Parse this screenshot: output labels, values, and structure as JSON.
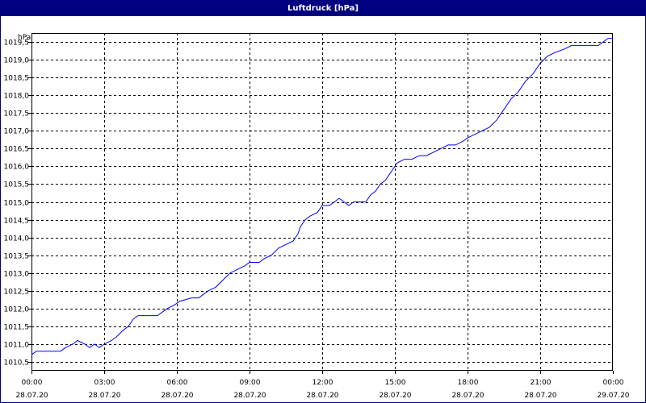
{
  "chart_data": {
    "type": "line",
    "title": "Luftdruck [hPa]",
    "ylabel": "hPa",
    "xlabel": "",
    "ylim": [
      1010.25,
      1019.75
    ],
    "xlim": [
      0,
      24
    ],
    "grid": true,
    "colors": {
      "line": "#0000ff",
      "title_bar": "#000080",
      "grid": "#000000"
    },
    "y_ticks": [
      {
        "value": 1010.5,
        "label": "1010,5"
      },
      {
        "value": 1011.0,
        "label": "1011,0"
      },
      {
        "value": 1011.5,
        "label": "1011,5"
      },
      {
        "value": 1012.0,
        "label": "1012,0"
      },
      {
        "value": 1012.5,
        "label": "1012,5"
      },
      {
        "value": 1013.0,
        "label": "1013,0"
      },
      {
        "value": 1013.5,
        "label": "1013,5"
      },
      {
        "value": 1014.0,
        "label": "1014,0"
      },
      {
        "value": 1014.5,
        "label": "1014,5"
      },
      {
        "value": 1015.0,
        "label": "1015,0"
      },
      {
        "value": 1015.5,
        "label": "1015,5"
      },
      {
        "value": 1016.0,
        "label": "1016,0"
      },
      {
        "value": 1016.5,
        "label": "1016,5"
      },
      {
        "value": 1017.0,
        "label": "1017,0"
      },
      {
        "value": 1017.5,
        "label": "1017,5"
      },
      {
        "value": 1018.0,
        "label": "1018,0"
      },
      {
        "value": 1018.5,
        "label": "1018,5"
      },
      {
        "value": 1019.0,
        "label": "1019,0"
      },
      {
        "value": 1019.5,
        "label": "1019,5"
      }
    ],
    "x_ticks": [
      {
        "hour": 0,
        "time": "00:00",
        "date": "28.07.20"
      },
      {
        "hour": 3,
        "time": "03:00",
        "date": "28.07.20"
      },
      {
        "hour": 6,
        "time": "06:00",
        "date": "28.07.20"
      },
      {
        "hour": 9,
        "time": "09:00",
        "date": "28.07.20"
      },
      {
        "hour": 12,
        "time": "12:00",
        "date": "28.07.20"
      },
      {
        "hour": 15,
        "time": "15:00",
        "date": "28.07.20"
      },
      {
        "hour": 18,
        "time": "18:00",
        "date": "28.07.20"
      },
      {
        "hour": 21,
        "time": "21:00",
        "date": "28.07.20"
      },
      {
        "hour": 24,
        "time": "00:00",
        "date": "29.07.20"
      }
    ],
    "series": [
      {
        "values": [
          [
            0.0,
            1010.7
          ],
          [
            0.2,
            1010.8
          ],
          [
            1.2,
            1010.8
          ],
          [
            1.4,
            1010.9
          ],
          [
            1.7,
            1011.0
          ],
          [
            1.9,
            1011.1
          ],
          [
            2.2,
            1011.0
          ],
          [
            2.4,
            1010.9
          ],
          [
            2.6,
            1011.0
          ],
          [
            2.8,
            1010.9
          ],
          [
            3.0,
            1011.0
          ],
          [
            3.3,
            1011.1
          ],
          [
            3.5,
            1011.2
          ],
          [
            3.8,
            1011.4
          ],
          [
            4.0,
            1011.5
          ],
          [
            4.2,
            1011.7
          ],
          [
            4.4,
            1011.8
          ],
          [
            5.0,
            1011.8
          ],
          [
            5.2,
            1011.8
          ],
          [
            5.4,
            1011.9
          ],
          [
            5.6,
            1012.0
          ],
          [
            5.9,
            1012.1
          ],
          [
            6.1,
            1012.2
          ],
          [
            6.6,
            1012.3
          ],
          [
            6.9,
            1012.3
          ],
          [
            7.1,
            1012.4
          ],
          [
            7.3,
            1012.5
          ],
          [
            7.6,
            1012.6
          ],
          [
            7.9,
            1012.8
          ],
          [
            8.2,
            1013.0
          ],
          [
            8.5,
            1013.1
          ],
          [
            8.8,
            1013.2
          ],
          [
            9.0,
            1013.3
          ],
          [
            9.4,
            1013.3
          ],
          [
            9.6,
            1013.4
          ],
          [
            9.9,
            1013.5
          ],
          [
            10.2,
            1013.7
          ],
          [
            10.5,
            1013.8
          ],
          [
            10.8,
            1013.9
          ],
          [
            11.0,
            1014.1
          ],
          [
            11.1,
            1014.3
          ],
          [
            11.3,
            1014.5
          ],
          [
            11.5,
            1014.6
          ],
          [
            11.8,
            1014.7
          ],
          [
            12.0,
            1014.9
          ],
          [
            12.3,
            1014.9
          ],
          [
            12.5,
            1015.0
          ],
          [
            12.7,
            1015.1
          ],
          [
            12.9,
            1015.0
          ],
          [
            13.1,
            1014.9
          ],
          [
            13.3,
            1015.0
          ],
          [
            13.5,
            1015.0
          ],
          [
            13.8,
            1015.0
          ],
          [
            14.0,
            1015.2
          ],
          [
            14.2,
            1015.3
          ],
          [
            14.4,
            1015.5
          ],
          [
            14.6,
            1015.6
          ],
          [
            14.8,
            1015.8
          ],
          [
            15.0,
            1016.0
          ],
          [
            15.1,
            1016.1
          ],
          [
            15.4,
            1016.2
          ],
          [
            15.7,
            1016.2
          ],
          [
            16.0,
            1016.3
          ],
          [
            16.3,
            1016.3
          ],
          [
            16.6,
            1016.4
          ],
          [
            16.9,
            1016.5
          ],
          [
            17.2,
            1016.6
          ],
          [
            17.5,
            1016.6
          ],
          [
            17.8,
            1016.7
          ],
          [
            18.0,
            1016.8
          ],
          [
            18.3,
            1016.9
          ],
          [
            18.6,
            1017.0
          ],
          [
            18.9,
            1017.1
          ],
          [
            19.2,
            1017.3
          ],
          [
            19.4,
            1017.5
          ],
          [
            19.6,
            1017.7
          ],
          [
            19.8,
            1017.9
          ],
          [
            20.1,
            1018.1
          ],
          [
            20.4,
            1018.4
          ],
          [
            20.7,
            1018.6
          ],
          [
            21.0,
            1018.9
          ],
          [
            21.3,
            1019.1
          ],
          [
            21.6,
            1019.2
          ],
          [
            22.0,
            1019.3
          ],
          [
            22.3,
            1019.4
          ],
          [
            23.0,
            1019.4
          ],
          [
            23.4,
            1019.4
          ],
          [
            23.6,
            1019.5
          ],
          [
            23.8,
            1019.6
          ],
          [
            24.0,
            1019.6
          ]
        ]
      }
    ]
  }
}
